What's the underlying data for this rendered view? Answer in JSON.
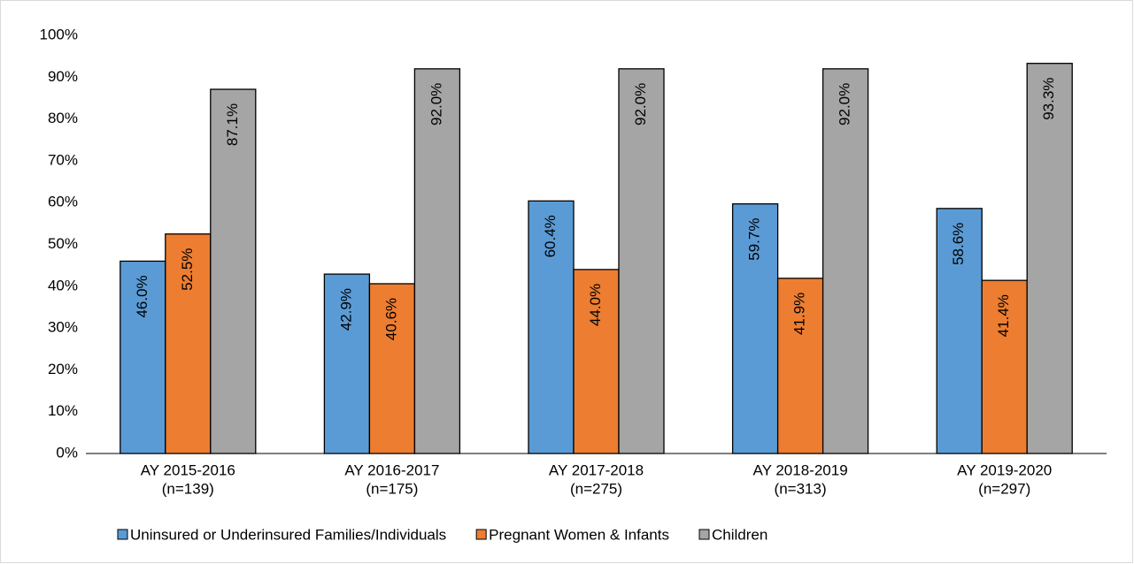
{
  "chart_data": {
    "type": "bar",
    "categories": [
      [
        "AY 2015-2016",
        "(n=139)"
      ],
      [
        "AY 2016-2017",
        "(n=175)"
      ],
      [
        "AY 2017-2018",
        "(n=275)"
      ],
      [
        "AY 2018-2019",
        "(n=313)"
      ],
      [
        "AY 2019-2020",
        "(n=297)"
      ]
    ],
    "series": [
      {
        "name": "Uninsured or Underinsured Families/Individuals",
        "color": "#5b9bd5",
        "values": [
          46.0,
          42.9,
          60.4,
          59.7,
          58.6
        ],
        "value_labels": [
          "46.0%",
          "42.9%",
          "60.4%",
          "59.7%",
          "58.6%"
        ]
      },
      {
        "name": "Pregnant Women & Infants",
        "color": "#ed7d31",
        "values": [
          52.5,
          40.6,
          44.0,
          41.9,
          41.4
        ],
        "value_labels": [
          "52.5%",
          "40.6%",
          "44.0%",
          "41.9%",
          "41.4%"
        ]
      },
      {
        "name": "Children",
        "color": "#a5a5a5",
        "values": [
          87.1,
          92.0,
          92.0,
          92.0,
          93.3
        ],
        "value_labels": [
          "87.1%",
          "92.0%",
          "92.0%",
          "92.0%",
          "93.3%"
        ]
      }
    ],
    "ylim": [
      0,
      100
    ],
    "yticks": [
      {
        "value": 0,
        "label": "0%"
      },
      {
        "value": 10,
        "label": "10%"
      },
      {
        "value": 20,
        "label": "20%"
      },
      {
        "value": 30,
        "label": "30%"
      },
      {
        "value": 40,
        "label": "40%"
      },
      {
        "value": 50,
        "label": "50%"
      },
      {
        "value": 60,
        "label": "60%"
      },
      {
        "value": 70,
        "label": "70%"
      },
      {
        "value": 80,
        "label": "80%"
      },
      {
        "value": 90,
        "label": "90%"
      },
      {
        "value": 100,
        "label": "100%"
      }
    ],
    "grid": false,
    "legend": "bottom"
  }
}
